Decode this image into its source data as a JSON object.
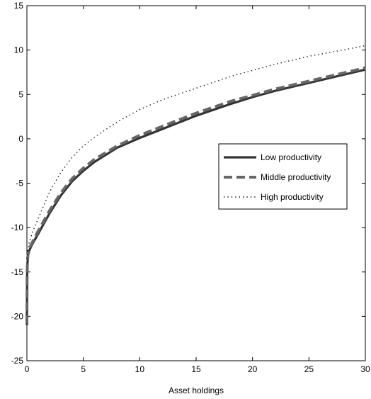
{
  "chart_data": {
    "type": "line",
    "title": "",
    "xlabel": "Asset holdings",
    "ylabel": "",
    "xlim": [
      0,
      30
    ],
    "ylim": [
      -25,
      15
    ],
    "xticks": [
      0,
      5,
      10,
      15,
      20,
      25,
      30
    ],
    "yticks": [
      -25,
      -20,
      -15,
      -10,
      -5,
      0,
      5,
      10,
      15
    ],
    "xtick_labels": [
      "0",
      "5",
      "10",
      "15",
      "20",
      "25",
      "30"
    ],
    "ytick_labels": [
      "-25",
      "-20",
      "-15",
      "-10",
      "-5",
      "0",
      "5",
      "10",
      "15"
    ],
    "grid": false,
    "legend_position": "right-middle",
    "x": [
      0.0,
      0.02,
      0.05,
      0.1,
      0.2,
      0.5,
      1,
      2,
      3,
      4,
      5,
      6,
      8,
      10,
      12,
      15,
      18,
      20,
      22,
      25,
      28,
      30
    ],
    "series": [
      {
        "name": "Low productivity",
        "style": "solid",
        "color": "#333333",
        "values": [
          -21.0,
          -15.5,
          -14.0,
          -13.2,
          -12.6,
          -11.8,
          -10.7,
          -8.4,
          -6.4,
          -4.8,
          -3.6,
          -2.6,
          -1.0,
          0.1,
          1.1,
          2.6,
          3.9,
          4.7,
          5.4,
          6.3,
          7.2,
          7.8
        ]
      },
      {
        "name": "Middle productivity",
        "style": "dashed",
        "color": "#666666",
        "values": [
          -20.8,
          -15.3,
          -13.8,
          -13.0,
          -12.4,
          -11.6,
          -10.4,
          -8.1,
          -6.1,
          -4.5,
          -3.3,
          -2.3,
          -0.8,
          0.4,
          1.4,
          2.9,
          4.2,
          4.9,
          5.6,
          6.5,
          7.4,
          8.0
        ]
      },
      {
        "name": "High productivity",
        "style": "dotted",
        "color": "#111111",
        "values": [
          -13.5,
          -13.2,
          -12.9,
          -12.4,
          -11.7,
          -10.5,
          -9.0,
          -6.0,
          -3.8,
          -2.1,
          -0.8,
          0.2,
          1.9,
          3.3,
          4.4,
          5.7,
          7.0,
          7.7,
          8.4,
          9.3,
          10.0,
          10.5
        ]
      }
    ]
  }
}
